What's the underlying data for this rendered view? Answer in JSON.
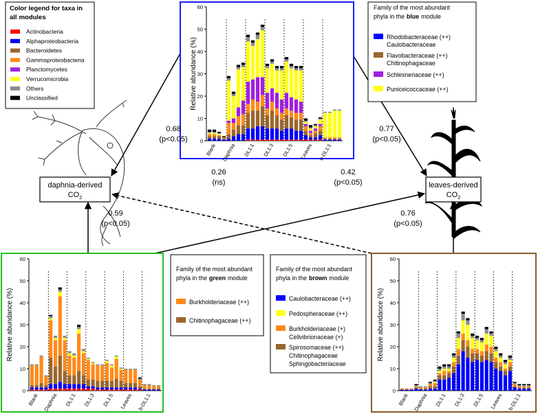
{
  "chart_data": [
    {
      "type": "bar",
      "stacked": true,
      "frame_color": "#1a1aff",
      "ylabel": "Relative abundance (%)",
      "ylim": [
        0,
        60
      ],
      "yticks": [
        0,
        10,
        20,
        30,
        40,
        50,
        60
      ],
      "legend_title": [
        "Color legend for taxa in",
        "all",
        "modules"
      ],
      "categories": [
        null,
        "Blank",
        null,
        null,
        null,
        "Daphnia",
        null,
        null,
        null,
        "DL1:1",
        null,
        null,
        null,
        "DL1:3",
        null,
        null,
        null,
        "DL1:5",
        null,
        null,
        null,
        "Leaves",
        null,
        null,
        null,
        "b-DL1:1",
        null,
        null
      ],
      "series": [
        {
          "name": "Actinobacteria",
          "color": "#ff0000",
          "values": [
            0,
            0,
            0,
            0,
            0,
            0,
            0,
            0,
            0.5,
            0.5,
            0.5,
            0.5,
            0.5,
            0.5,
            0.5,
            0.5,
            0.5,
            0.5,
            0.5,
            0.5,
            0.5,
            0.5,
            0.5,
            0.5,
            0,
            0,
            0,
            0
          ]
        },
        {
          "name": "Alphaproteobacteria",
          "color": "#0000ff",
          "values": [
            1,
            1,
            1,
            0.5,
            1,
            2,
            3,
            3,
            5,
            5,
            6,
            6,
            5,
            5,
            5,
            4,
            5,
            5,
            4,
            4,
            2,
            1,
            1,
            2,
            0.5,
            0.5,
            0.5,
            0.5
          ]
        },
        {
          "name": "Bacteroidetes",
          "color": "#99662e",
          "values": [
            1,
            1,
            1,
            0.5,
            2,
            3,
            4,
            4,
            7,
            8,
            7,
            9,
            6,
            8,
            6,
            5,
            6,
            5,
            5,
            5,
            2,
            1,
            2,
            2,
            0.5,
            0.5,
            0.5,
            0.5
          ]
        },
        {
          "name": "Gammaproteobacteria",
          "color": "#ff8a1a",
          "values": [
            1,
            1,
            0.5,
            0.5,
            5,
            3,
            4,
            5,
            4,
            5,
            4,
            5,
            3,
            4,
            3,
            3,
            3,
            3,
            3,
            3,
            2,
            1,
            1,
            2,
            0.5,
            0.5,
            0.5,
            0.5
          ]
        },
        {
          "name": "Planctomycetes",
          "color": "#a020e0",
          "values": [
            0,
            0,
            0,
            0,
            1,
            2,
            4,
            6,
            10,
            9,
            11,
            8,
            7,
            6,
            7,
            6,
            7,
            6,
            6,
            5,
            1,
            1,
            1,
            1,
            0,
            0,
            0,
            0
          ]
        },
        {
          "name": "Verrucomicrobia",
          "color": "#ffff1a",
          "values": [
            0.5,
            0.5,
            0.5,
            0,
            18,
            10,
            17,
            15,
            18,
            15,
            17,
            21,
            11,
            11,
            10,
            13,
            14,
            13,
            13,
            14,
            1,
            1,
            1,
            2,
            11,
            11,
            12,
            12
          ]
        },
        {
          "name": "Others",
          "color": "#8c8c8c",
          "values": [
            0.5,
            0.5,
            0.5,
            0,
            1,
            1,
            1,
            1,
            2,
            1.5,
            2,
            1.5,
            1,
            1,
            1,
            1,
            1,
            1,
            1,
            1,
            0.5,
            0.5,
            0.5,
            0.5,
            0.5,
            0.5,
            0.5,
            0.5
          ]
        },
        {
          "name": "Unclassified",
          "color": "#000000",
          "values": [
            1,
            1,
            0.5,
            0.5,
            1,
            1,
            1,
            1,
            1,
            1,
            1,
            1,
            1,
            1,
            1,
            1,
            1,
            1,
            1,
            1,
            1,
            1,
            0.5,
            0.5,
            0,
            0,
            0,
            0
          ]
        }
      ]
    },
    {
      "type": "bar",
      "stacked": true,
      "frame_color": "#22c022",
      "ylabel": "Relative abundance (%)",
      "ylim": [
        0,
        60
      ],
      "yticks": [
        0,
        10,
        20,
        30,
        40,
        50,
        60
      ],
      "categories": [
        null,
        "Blank",
        null,
        null,
        null,
        "Daphnia",
        null,
        null,
        null,
        "DL1:1",
        null,
        null,
        null,
        "DL1:3",
        null,
        null,
        null,
        "DL1:5",
        null,
        null,
        null,
        "Leaves",
        null,
        null,
        null,
        "b-DL1:1",
        null,
        null
      ],
      "series": [
        {
          "color": "#ff0000",
          "values": [
            0.5,
            0.5,
            0.5,
            0.5,
            1,
            1,
            1,
            1,
            1,
            1,
            1,
            1,
            1,
            1,
            0.5,
            0.5,
            0.5,
            0.5,
            0.5,
            0.5,
            0.5,
            0.5,
            0.5,
            0.5,
            0,
            0,
            0,
            0
          ]
        },
        {
          "color": "#0000ff",
          "values": [
            1,
            1,
            1,
            1,
            2,
            2,
            3,
            2,
            2,
            2,
            2,
            2,
            1,
            1,
            1,
            1,
            1,
            1,
            1,
            1,
            1,
            1,
            1,
            0.5,
            0.5,
            0.5,
            0.5,
            0.5
          ]
        },
        {
          "color": "#99662e",
          "values": [
            1,
            1,
            2,
            1,
            12,
            8,
            12,
            6,
            4,
            4,
            6,
            4,
            3,
            3,
            3,
            3,
            3,
            3,
            4,
            3,
            2,
            2,
            2,
            1,
            0.5,
            0.5,
            0.5,
            0.5
          ]
        },
        {
          "color": "#ff8a1a",
          "values": [
            9,
            9,
            12,
            4,
            17,
            12,
            27,
            14,
            9,
            8,
            17,
            10,
            9,
            7,
            7,
            7,
            8,
            6,
            9,
            5,
            6,
            6,
            6,
            3,
            1.5,
            1.5,
            1,
            1
          ]
        },
        {
          "color": "#ffff1a",
          "values": [
            0,
            0,
            0,
            0,
            1,
            1,
            2,
            1,
            1,
            1,
            2,
            1,
            0.5,
            0.5,
            0,
            0,
            1,
            1,
            1,
            0.5,
            0,
            0,
            0,
            0,
            0,
            0,
            0,
            0
          ]
        },
        {
          "color": "#8c8c8c",
          "values": [
            0.5,
            0.5,
            0.5,
            0.5,
            1,
            1,
            1,
            1,
            1,
            1,
            1,
            1,
            0.5,
            0.5,
            0.5,
            0.5,
            0.5,
            0.5,
            0.5,
            0.5,
            0.5,
            0.5,
            0.5,
            0.5,
            0.5,
            0.5,
            0.5,
            0.5
          ]
        },
        {
          "color": "#000000",
          "values": [
            0,
            0,
            0,
            0,
            0.5,
            0,
            1,
            0,
            0,
            0,
            1,
            0,
            0,
            0,
            0,
            0,
            0,
            0,
            0,
            0,
            0,
            0,
            0,
            0.5,
            0,
            0,
            0,
            0
          ]
        }
      ]
    },
    {
      "type": "bar",
      "stacked": true,
      "frame_color": "#8b5a2b",
      "ylabel": "Relative abundance (%)",
      "ylim": [
        0,
        60
      ],
      "yticks": [
        0,
        10,
        20,
        30,
        40,
        50,
        60
      ],
      "categories": [
        null,
        "Blank",
        null,
        null,
        null,
        "Daphnia",
        null,
        null,
        null,
        "DL1:1",
        null,
        null,
        null,
        "DL1:3",
        null,
        null,
        null,
        "DL1:5",
        null,
        null,
        null,
        "Leaves",
        null,
        null,
        null,
        "b-DL1:1",
        null,
        null
      ],
      "series": [
        {
          "color": "#0000ff",
          "values": [
            0.5,
            0.5,
            0.5,
            1,
            0.5,
            0.5,
            1,
            1,
            5,
            5,
            6,
            8,
            12,
            18,
            15,
            13,
            14,
            13,
            14,
            13,
            10,
            9,
            7,
            9,
            1.5,
            1,
            1,
            1
          ]
        },
        {
          "color": "#99662e",
          "values": [
            0,
            0,
            0,
            0.5,
            0.5,
            0.5,
            1,
            1,
            2,
            2,
            2,
            3,
            4,
            5,
            5,
            4,
            3,
            3,
            4,
            4,
            3,
            2,
            2,
            2,
            0.5,
            0.5,
            0.5,
            0.5
          ]
        },
        {
          "color": "#ff8a1a",
          "values": [
            0.5,
            0.5,
            0.5,
            0.5,
            0.5,
            0.5,
            1,
            1.5,
            1,
            2,
            1,
            2,
            3,
            3,
            3,
            2,
            2,
            2,
            3,
            3,
            2,
            2,
            1,
            2,
            1,
            0.5,
            0.5,
            0.5
          ]
        },
        {
          "color": "#ffff1a",
          "values": [
            0,
            0,
            0,
            0,
            0,
            0,
            0,
            0.5,
            1,
            1,
            1,
            2,
            5,
            6,
            7,
            5,
            4,
            4,
            5,
            5,
            3,
            2,
            2,
            1,
            0,
            0,
            0,
            0
          ]
        },
        {
          "color": "#8c8c8c",
          "values": [
            0,
            0,
            0,
            0.5,
            0.5,
            0.5,
            0.5,
            0.5,
            1,
            1,
            1,
            1,
            2,
            3,
            2,
            1,
            1,
            1,
            2,
            1,
            1,
            1,
            1,
            1,
            0.5,
            0.5,
            0.5,
            0.5
          ]
        },
        {
          "color": "#000000",
          "values": [
            0,
            0,
            0,
            0.5,
            0,
            0,
            0.5,
            0.5,
            1,
            1,
            1,
            1,
            1,
            1,
            1,
            1,
            1,
            1,
            1,
            1,
            1,
            1,
            1,
            1,
            0.5,
            0.5,
            0.5,
            0.5
          ]
        }
      ]
    }
  ],
  "modules": [
    {
      "title": [
        "Family of the most abundant",
        "phyla in the",
        "blue",
        "module"
      ],
      "items": [
        {
          "color": "#0000ff",
          "lines": [
            "Rhodobacteraceae (++)",
            "Caulobacteraceae"
          ]
        },
        {
          "color": "#99662e",
          "lines": [
            "Flavobacteraceae (++)",
            "Chitinophagaceae"
          ]
        },
        {
          "color": "#a020e0",
          "lines": [
            "Schlesneriaceae (++)"
          ]
        },
        {
          "color": "#ffff1a",
          "lines": [
            "Puniceicoccaceae (++)"
          ]
        }
      ]
    },
    {
      "title": [
        "Family of the most abundant",
        "phyla in the",
        "green",
        "module"
      ],
      "items": [
        {
          "color": "#ff8a1a",
          "lines": [
            "Burkholderiaceae (++)"
          ]
        },
        {
          "color": "#99662e",
          "lines": [
            "Chitinophagaceae (++)"
          ]
        }
      ]
    },
    {
      "title": [
        "Family of the most abundant",
        "phyla in the",
        "brown",
        "module"
      ],
      "items": [
        {
          "color": "#0000ff",
          "lines": [
            "Caulobacteraceae (++)"
          ]
        },
        {
          "color": "#ffff1a",
          "lines": [
            "Pedospheraceae (++)"
          ]
        },
        {
          "color": "#ff8a1a",
          "lines": [
            "Burkholderiaceae (+)",
            "Cellvibrionaceae (+)"
          ]
        },
        {
          "color": "#99662e",
          "lines": [
            "Spirosomaceae (++)",
            "Chitinophagaceae",
            "Sphingobacteriaceae"
          ]
        }
      ]
    }
  ],
  "nodes": [
    {
      "label": "daphnia-derived",
      "formula": [
        "CO",
        "2"
      ]
    },
    {
      "label": "leaves-derived",
      "formula": [
        "CO",
        "2"
      ]
    }
  ],
  "edges": [
    {
      "r": 0.68,
      "sig": "(p<0.05)"
    },
    {
      "r": 0.77,
      "sig": "(p<0.05)"
    },
    {
      "r": 0.26,
      "sig": "(ns)"
    },
    {
      "r": 0.42,
      "sig": "(p<0.05)"
    },
    {
      "r": 0.59,
      "sig": "(p<0.05)"
    },
    {
      "r": 0.76,
      "sig": "(p<0.05)"
    }
  ]
}
